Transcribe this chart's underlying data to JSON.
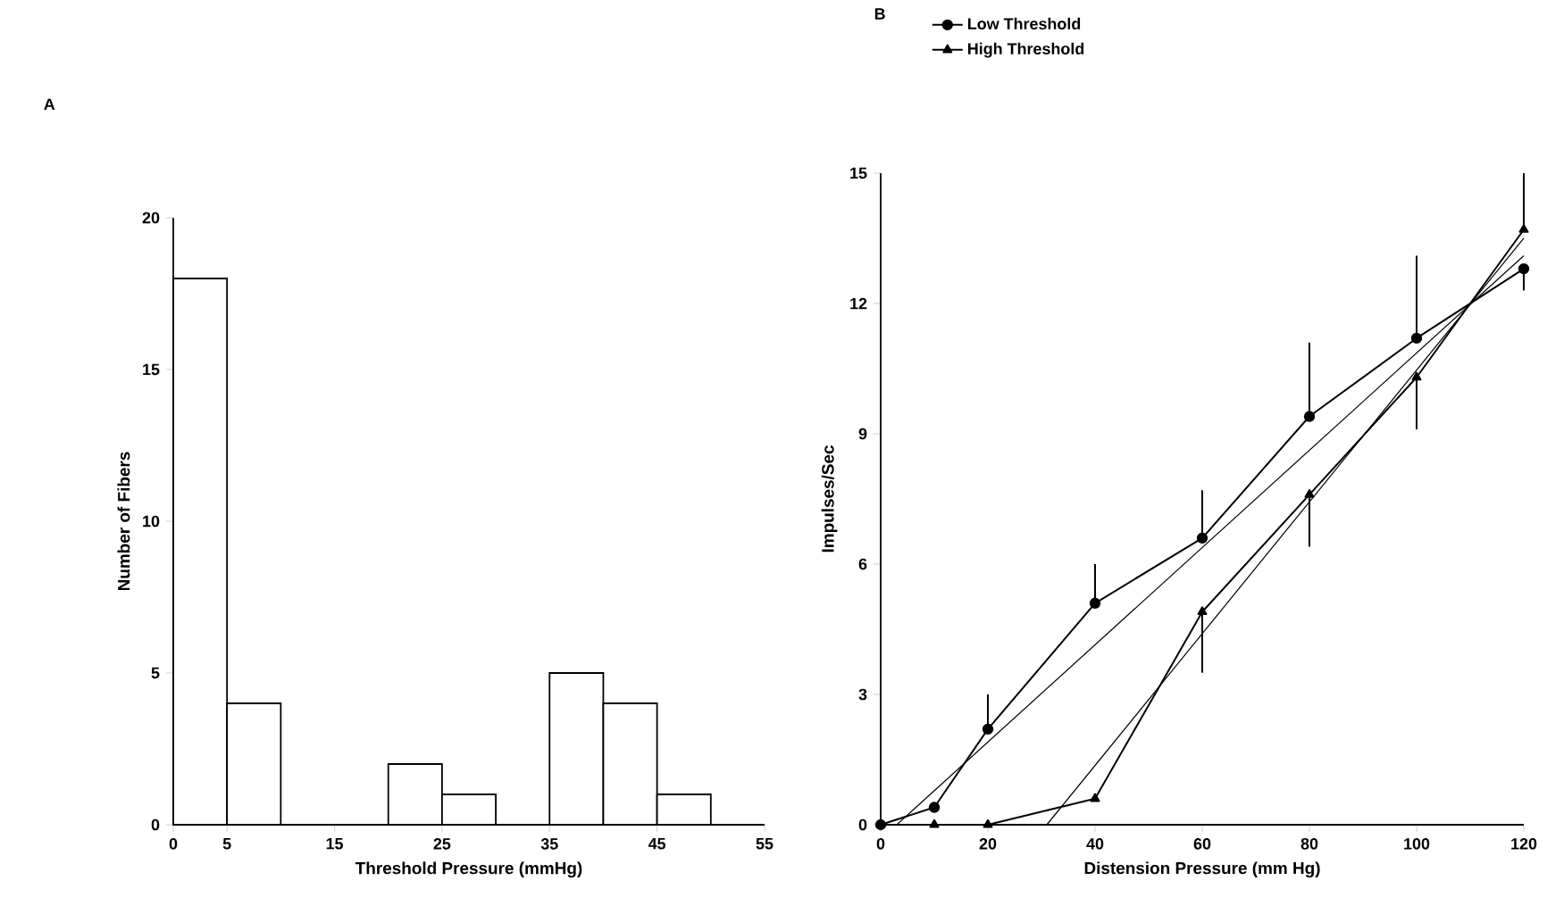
{
  "chart_data": [
    {
      "type": "histogram",
      "title": "A",
      "xlabel": "Threshold Pressure (mmHg)",
      "ylabel": "Number of Fibers",
      "bins": [
        0,
        5,
        10,
        15,
        20,
        25,
        30,
        35,
        40,
        45,
        50
      ],
      "values": [
        18,
        4,
        0,
        0,
        2,
        1,
        0,
        5,
        4,
        1
      ],
      "color": "#000000",
      "xlim": [
        0,
        55
      ],
      "ylim": [
        0,
        20
      ],
      "xticks": [
        0,
        5,
        15,
        25,
        35,
        45,
        55
      ],
      "yticks": [
        0,
        5,
        10,
        15,
        20
      ]
    },
    {
      "type": "line",
      "title": "B",
      "xlabel": "Distension Pressure (mm Hg)",
      "ylabel": "Impulses/Sec",
      "xlim": [
        0,
        120
      ],
      "ylim": [
        0,
        15
      ],
      "xticks": [
        0,
        20,
        40,
        60,
        80,
        100,
        120
      ],
      "yticks": [
        0,
        3,
        6,
        9,
        12,
        15
      ],
      "legend": "top",
      "series": [
        {
          "name": "Low Threshold",
          "color": "#000000",
          "marker": "circle",
          "x": [
            0,
            10,
            20,
            40,
            60,
            80,
            100,
            120
          ],
          "values": [
            0,
            0.4,
            2.2,
            5.1,
            6.6,
            9.4,
            11.2,
            12.8
          ],
          "errors": [
            null,
            null,
            [
              2.2,
              3.0
            ],
            [
              5.1,
              6.0
            ],
            [
              6.6,
              7.7
            ],
            [
              9.4,
              11.1
            ],
            [
              11.2,
              13.1
            ],
            [
              12.3,
              12.8
            ]
          ]
        },
        {
          "name": "High Threshold",
          "color": "#000000",
          "marker": "triangle",
          "x": [
            0,
            10,
            20,
            40,
            60,
            80,
            100,
            120
          ],
          "values": [
            0,
            0,
            0,
            0.6,
            4.9,
            7.6,
            10.3,
            13.7
          ],
          "errors": [
            null,
            null,
            null,
            null,
            [
              3.5,
              4.9
            ],
            [
              6.4,
              7.6
            ],
            [
              9.1,
              10.3
            ],
            [
              13.7,
              15.0
            ]
          ]
        },
        {
          "color": "#000000",
          "marker": "none",
          "x": [
            3,
            120
          ],
          "values": [
            0,
            13.1
          ]
        },
        {
          "color": "#000000",
          "marker": "none",
          "x": [
            31,
            120
          ],
          "values": [
            0,
            13.5
          ]
        }
      ]
    }
  ]
}
